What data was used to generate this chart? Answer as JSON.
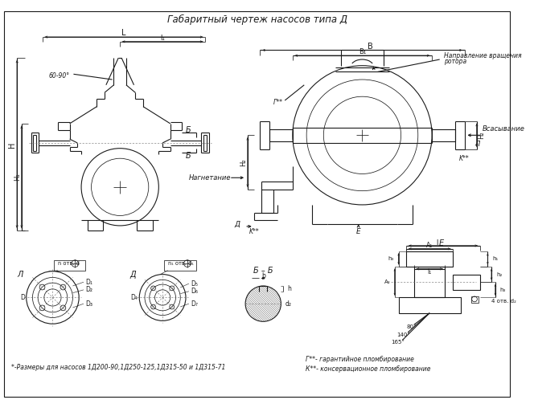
{
  "title": "Габаритный чертеж насосов типа Д",
  "bg_color": "#ffffff",
  "line_color": "#1a1a1a",
  "note1": "*-Размеры для насосов 1Д200-90,1Д250-125,1Д315-50 и 1Д315-71",
  "note2": "Г**- гарантийное пломбирование",
  "note3": "К**- консервационное пломбирование"
}
